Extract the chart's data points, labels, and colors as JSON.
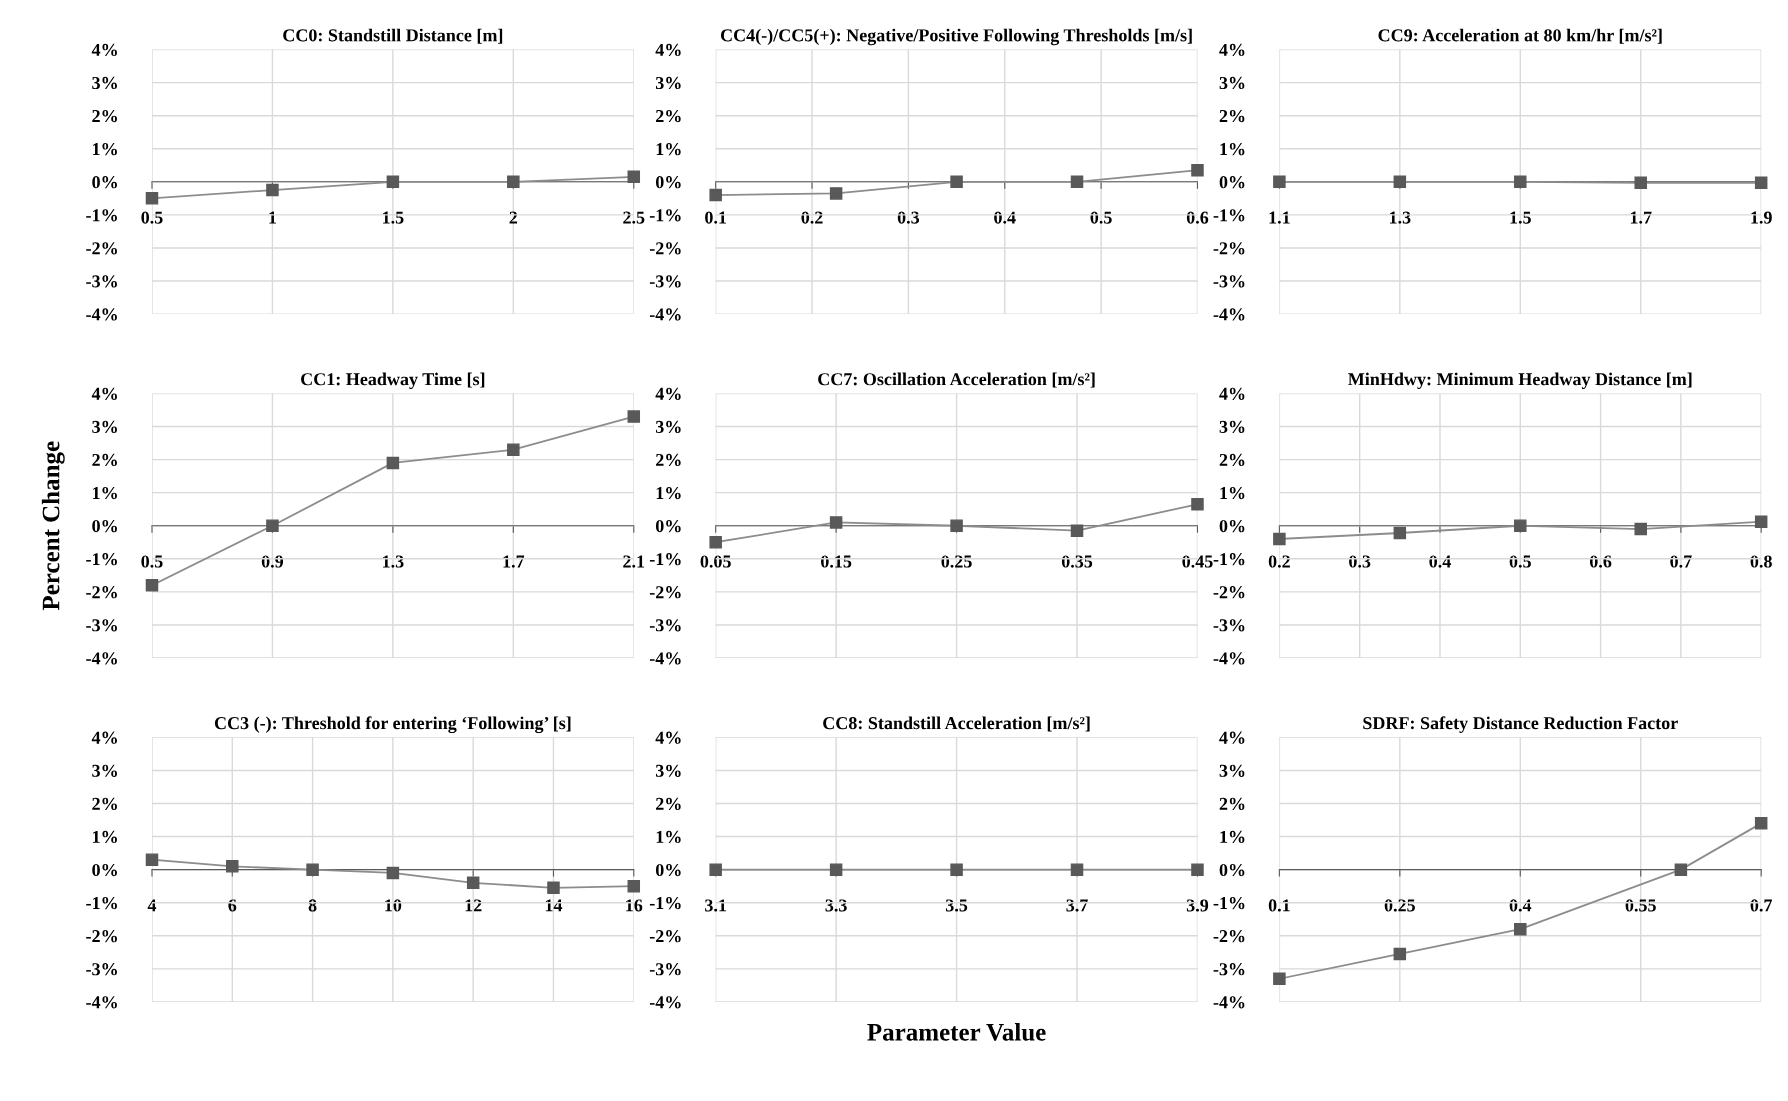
{
  "chart_data": [
    {
      "type": "line",
      "title": "CC0: Standstill Distance [m]",
      "x": [
        0.5,
        1,
        1.5,
        2,
        2.5
      ],
      "series": [
        {
          "color": "#595959",
          "values": [
            -0.5,
            -0.25,
            0,
            0,
            0.15
          ]
        }
      ],
      "xlim": [
        0.5,
        2.5
      ],
      "xticks": [
        0.5,
        1,
        1.5,
        2,
        2.5
      ],
      "ylim": [
        -4,
        4
      ],
      "yticks": [
        {
          "value": -4,
          "label": "-4%"
        },
        {
          "value": -3,
          "label": "-3%"
        },
        {
          "value": -2,
          "label": "-2%"
        },
        {
          "value": -1,
          "label": "-1%"
        },
        {
          "value": 0,
          "label": "0%"
        },
        {
          "value": 1,
          "label": "1%"
        },
        {
          "value": 2,
          "label": "2%"
        },
        {
          "value": 3,
          "label": "3%"
        },
        {
          "value": 4,
          "label": "4%"
        }
      ],
      "grid": true,
      "marker": "square",
      "legend": false
    },
    {
      "type": "line",
      "title": "CC4(-)/CC5(+): Negative/Positive Following Thresholds [m/s]",
      "x": [
        0.1,
        0.225,
        0.35,
        0.475,
        0.6
      ],
      "series": [
        {
          "color": "#595959",
          "values": [
            -0.4,
            -0.35,
            0,
            0,
            0.35
          ]
        }
      ],
      "xlim": [
        0.1,
        0.6
      ],
      "xticks": [
        0.1,
        0.2,
        0.3,
        0.4,
        0.5,
        0.6
      ],
      "ylim": [
        -4,
        4
      ],
      "yticks": [
        {
          "value": -4,
          "label": "-4%"
        },
        {
          "value": -3,
          "label": "-3%"
        },
        {
          "value": -2,
          "label": "-2%"
        },
        {
          "value": -1,
          "label": "-1%"
        },
        {
          "value": 0,
          "label": "0%"
        },
        {
          "value": 1,
          "label": "1%"
        },
        {
          "value": 2,
          "label": "2%"
        },
        {
          "value": 3,
          "label": "3%"
        },
        {
          "value": 4,
          "label": "4%"
        }
      ],
      "grid": true,
      "marker": "square",
      "legend": false
    },
    {
      "type": "line",
      "title": "CC9: Acceleration at 80 km/hr [m/s²]",
      "x": [
        1.1,
        1.3,
        1.5,
        1.7,
        1.9
      ],
      "series": [
        {
          "color": "#595959",
          "values": [
            0,
            0,
            0,
            -0.03,
            -0.03
          ]
        }
      ],
      "xlim": [
        1.1,
        1.9
      ],
      "xticks": [
        1.1,
        1.3,
        1.5,
        1.7,
        1.9
      ],
      "ylim": [
        -4,
        4
      ],
      "yticks": [
        {
          "value": -4,
          "label": "-4%"
        },
        {
          "value": -3,
          "label": "-3%"
        },
        {
          "value": -2,
          "label": "-2%"
        },
        {
          "value": -1,
          "label": "-1%"
        },
        {
          "value": 0,
          "label": "0%"
        },
        {
          "value": 1,
          "label": "1%"
        },
        {
          "value": 2,
          "label": "2%"
        },
        {
          "value": 3,
          "label": "3%"
        },
        {
          "value": 4,
          "label": "4%"
        }
      ],
      "grid": true,
      "marker": "square",
      "legend": false
    },
    {
      "type": "line",
      "title": "CC1: Headway Time [s]",
      "ylabel": "Percent Change",
      "x": [
        0.5,
        0.9,
        1.3,
        1.7,
        2.1
      ],
      "series": [
        {
          "color": "#595959",
          "values": [
            -1.8,
            0,
            1.9,
            2.3,
            3.3
          ]
        }
      ],
      "xlim": [
        0.5,
        2.1
      ],
      "xticks": [
        0.5,
        0.9,
        1.3,
        1.7,
        2.1
      ],
      "ylim": [
        -4,
        4
      ],
      "yticks": [
        {
          "value": -4,
          "label": "-4%"
        },
        {
          "value": -3,
          "label": "-3%"
        },
        {
          "value": -2,
          "label": "-2%"
        },
        {
          "value": -1,
          "label": "-1%"
        },
        {
          "value": 0,
          "label": "0%"
        },
        {
          "value": 1,
          "label": "1%"
        },
        {
          "value": 2,
          "label": "2%"
        },
        {
          "value": 3,
          "label": "3%"
        },
        {
          "value": 4,
          "label": "4%"
        }
      ],
      "grid": true,
      "marker": "square",
      "legend": false
    },
    {
      "type": "line",
      "title": "CC7: Oscillation Acceleration [m/s²]",
      "x": [
        0.05,
        0.15,
        0.25,
        0.35,
        0.45
      ],
      "series": [
        {
          "color": "#595959",
          "values": [
            -0.5,
            0.1,
            0,
            -0.15,
            0.65
          ]
        }
      ],
      "xlim": [
        0.05,
        0.45
      ],
      "xticks": [
        0.05,
        0.15,
        0.25,
        0.35,
        0.45
      ],
      "ylim": [
        -4,
        4
      ],
      "yticks": [
        {
          "value": -4,
          "label": "-4%"
        },
        {
          "value": -3,
          "label": "-3%"
        },
        {
          "value": -2,
          "label": "-2%"
        },
        {
          "value": -1,
          "label": "-1%"
        },
        {
          "value": 0,
          "label": "0%"
        },
        {
          "value": 1,
          "label": "1%"
        },
        {
          "value": 2,
          "label": "2%"
        },
        {
          "value": 3,
          "label": "3%"
        },
        {
          "value": 4,
          "label": "4%"
        }
      ],
      "grid": true,
      "marker": "square",
      "legend": false
    },
    {
      "type": "line",
      "title": "MinHdwy: Minimum Headway Distance [m]",
      "x": [
        0.2,
        0.35,
        0.5,
        0.65,
        0.8
      ],
      "series": [
        {
          "color": "#595959",
          "values": [
            -0.4,
            -0.22,
            0,
            -0.1,
            0.12
          ]
        }
      ],
      "xlim": [
        0.2,
        0.8
      ],
      "xticks": [
        0.2,
        0.3,
        0.4,
        0.5,
        0.6,
        0.7,
        0.8
      ],
      "ylim": [
        -4,
        4
      ],
      "yticks": [
        {
          "value": -4,
          "label": "-4%"
        },
        {
          "value": -3,
          "label": "-3%"
        },
        {
          "value": -2,
          "label": "-2%"
        },
        {
          "value": -1,
          "label": "-1%"
        },
        {
          "value": 0,
          "label": "0%"
        },
        {
          "value": 1,
          "label": "1%"
        },
        {
          "value": 2,
          "label": "2%"
        },
        {
          "value": 3,
          "label": "3%"
        },
        {
          "value": 4,
          "label": "4%"
        }
      ],
      "grid": true,
      "marker": "square",
      "legend": false
    },
    {
      "type": "line",
      "title": "CC3 (-): Threshold for entering ‘Following’ [s]",
      "x": [
        4,
        6,
        8,
        10,
        12,
        14,
        16
      ],
      "series": [
        {
          "color": "#595959",
          "values": [
            0.3,
            0.1,
            0,
            -0.1,
            -0.4,
            -0.55,
            -0.5
          ]
        }
      ],
      "xlim": [
        4,
        16
      ],
      "xticks": [
        4,
        6,
        8,
        10,
        12,
        14,
        16
      ],
      "ylim": [
        -4,
        4
      ],
      "yticks": [
        {
          "value": -4,
          "label": "-4%"
        },
        {
          "value": -3,
          "label": "-3%"
        },
        {
          "value": -2,
          "label": "-2%"
        },
        {
          "value": -1,
          "label": "-1%"
        },
        {
          "value": 0,
          "label": "0%"
        },
        {
          "value": 1,
          "label": "1%"
        },
        {
          "value": 2,
          "label": "2%"
        },
        {
          "value": 3,
          "label": "3%"
        },
        {
          "value": 4,
          "label": "4%"
        }
      ],
      "grid": true,
      "marker": "square",
      "legend": false
    },
    {
      "type": "line",
      "title": "CC8: Standstill Acceleration [m/s²]",
      "xlabel": "Parameter Value",
      "x": [
        3.1,
        3.3,
        3.5,
        3.7,
        3.9
      ],
      "series": [
        {
          "color": "#595959",
          "values": [
            0,
            0,
            0,
            0,
            0
          ]
        }
      ],
      "xlim": [
        3.1,
        3.9
      ],
      "xticks": [
        3.1,
        3.3,
        3.5,
        3.7,
        3.9
      ],
      "ylim": [
        -4,
        4
      ],
      "yticks": [
        {
          "value": -4,
          "label": "-4%"
        },
        {
          "value": -3,
          "label": "-3%"
        },
        {
          "value": -2,
          "label": "-2%"
        },
        {
          "value": -1,
          "label": "-1%"
        },
        {
          "value": 0,
          "label": "0%"
        },
        {
          "value": 1,
          "label": "1%"
        },
        {
          "value": 2,
          "label": "2%"
        },
        {
          "value": 3,
          "label": "3%"
        },
        {
          "value": 4,
          "label": "4%"
        }
      ],
      "grid": true,
      "marker": "square",
      "legend": false
    },
    {
      "type": "line",
      "title": "SDRF: Safety Distance Reduction Factor",
      "x": [
        0.1,
        0.25,
        0.4,
        0.6,
        0.7
      ],
      "series": [
        {
          "color": "#595959",
          "values": [
            -3.3,
            -2.55,
            -1.8,
            0,
            1.4
          ]
        }
      ],
      "xlim": [
        0.1,
        0.7
      ],
      "xticks": [
        0.1,
        0.25,
        0.4,
        0.55,
        0.7
      ],
      "ylim": [
        -4,
        4
      ],
      "yticks": [
        {
          "value": -4,
          "label": "-4%"
        },
        {
          "value": -3,
          "label": "-3%"
        },
        {
          "value": -2,
          "label": "-2%"
        },
        {
          "value": -1,
          "label": "-1%"
        },
        {
          "value": 0,
          "label": "0%"
        },
        {
          "value": 1,
          "label": "1%"
        },
        {
          "value": 2,
          "label": "2%"
        },
        {
          "value": 3,
          "label": "3%"
        },
        {
          "value": 4,
          "label": "4%"
        }
      ],
      "grid": true,
      "marker": "square",
      "legend": false
    }
  ]
}
